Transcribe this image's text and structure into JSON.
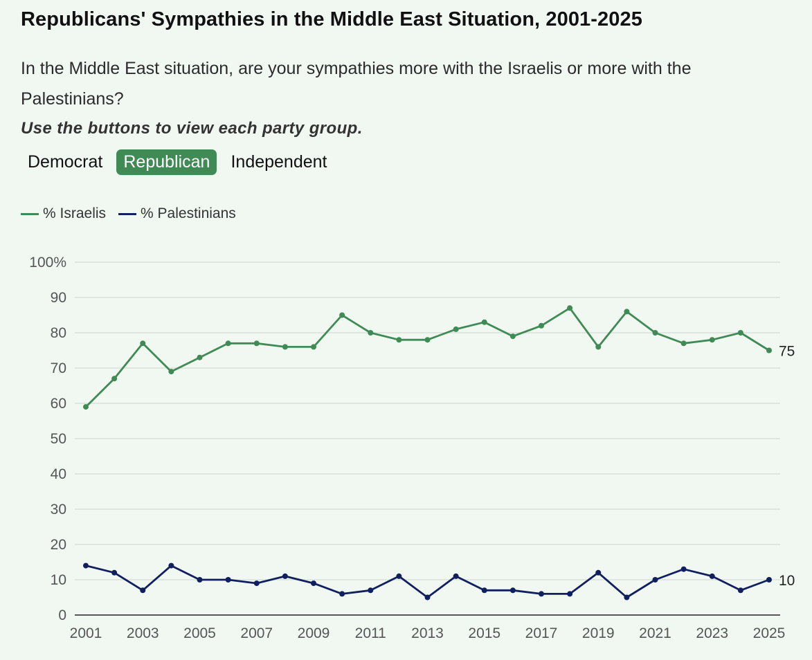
{
  "title": "Republicans' Sympathies in the Middle East Situation, 2001-2025",
  "subtitle": "In the Middle East situation, are your sympathies more with the Israelis or more with the Palestinians?",
  "instruction": "Use the buttons to view each party group.",
  "tabs": [
    {
      "label": "Democrat",
      "active": false
    },
    {
      "label": "Republican",
      "active": true
    },
    {
      "label": "Independent",
      "active": false
    }
  ],
  "colors": {
    "israelis": "#3f8a55",
    "palestinians": "#10205e",
    "active_tab": "#3f8a55"
  },
  "chart_data": {
    "type": "line",
    "x": [
      2001,
      2002,
      2003,
      2004,
      2005,
      2006,
      2007,
      2008,
      2009,
      2010,
      2011,
      2012,
      2013,
      2014,
      2015,
      2016,
      2017,
      2018,
      2019,
      2020,
      2021,
      2022,
      2023,
      2024,
      2025
    ],
    "series": [
      {
        "name": "% Israelis",
        "values": [
          59,
          67,
          77,
          69,
          73,
          77,
          77,
          76,
          76,
          85,
          80,
          78,
          78,
          81,
          83,
          79,
          82,
          87,
          76,
          86,
          80,
          77,
          78,
          80,
          75
        ],
        "end_label": "75"
      },
      {
        "name": "% Palestinians",
        "values": [
          14,
          12,
          7,
          14,
          10,
          10,
          9,
          11,
          9,
          6,
          7,
          11,
          5,
          11,
          7,
          7,
          6,
          6,
          12,
          5,
          10,
          13,
          11,
          7,
          10
        ],
        "end_label": "10"
      }
    ],
    "xticks": [
      "2001",
      "2003",
      "2005",
      "2007",
      "2009",
      "2011",
      "2013",
      "2015",
      "2017",
      "2019",
      "2021",
      "2023",
      "2025"
    ],
    "yticks": [
      "0",
      "10",
      "20",
      "30",
      "40",
      "50",
      "60",
      "70",
      "80",
      "90",
      "100%"
    ],
    "ylim": [
      0,
      100
    ],
    "xlabel": "",
    "ylabel": ""
  }
}
